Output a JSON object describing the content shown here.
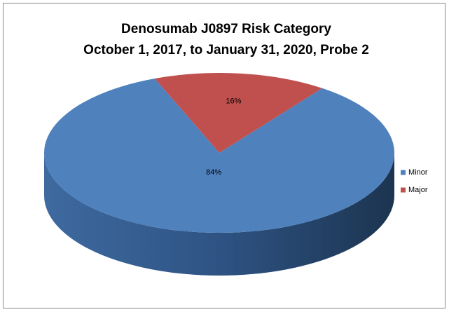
{
  "chart_data": {
    "type": "pie",
    "title": "Denosumab J0897 Risk Category",
    "subtitle": "October 1, 2017, to January 31, 2020, Probe 2",
    "categories": [
      "Minor",
      "Major"
    ],
    "values": [
      84,
      16
    ],
    "value_labels": [
      "84%",
      "16%"
    ],
    "colors": [
      "#4f81bd",
      "#c0504d"
    ],
    "legend": "right"
  }
}
